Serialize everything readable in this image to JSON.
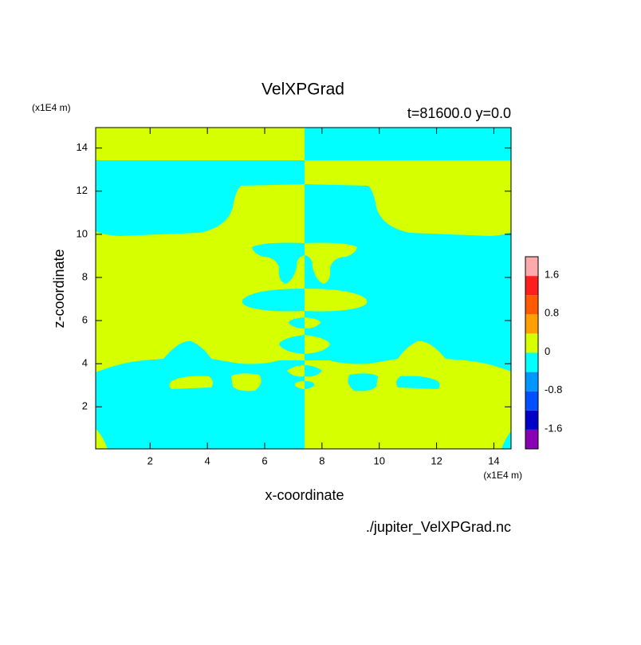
{
  "chart_data": {
    "type": "contour",
    "title": "VelXPGrad",
    "subtitle": "t=81600.0 y=0.0",
    "xlabel": "x-coordinate",
    "ylabel": "z-coordinate",
    "x_unit": "(x1E4 m)",
    "y_unit": "(x1E4 m)",
    "source": "./jupiter_VelXPGrad.nc",
    "xlim": [
      0.1,
      14.6
    ],
    "ylim": [
      0.05,
      14.95
    ],
    "xticks": [
      2,
      4,
      6,
      8,
      10,
      12,
      14
    ],
    "yticks": [
      2,
      4,
      6,
      8,
      10,
      12,
      14
    ],
    "colorbar": {
      "levels": [
        -2.0,
        -1.6,
        -1.2,
        -0.8,
        -0.4,
        0,
        0.4,
        0.8,
        1.2,
        1.6,
        2.0
      ],
      "colors": [
        "#8a00b4",
        "#0000c8",
        "#0050ff",
        "#0096ff",
        "#00ffff",
        "#d6ff00",
        "#ffa000",
        "#ff5a00",
        "#ff1e1e",
        "#ffaaaa"
      ],
      "ticks": [
        -1.6,
        -0.8,
        0,
        0.8,
        1.6
      ]
    }
  }
}
